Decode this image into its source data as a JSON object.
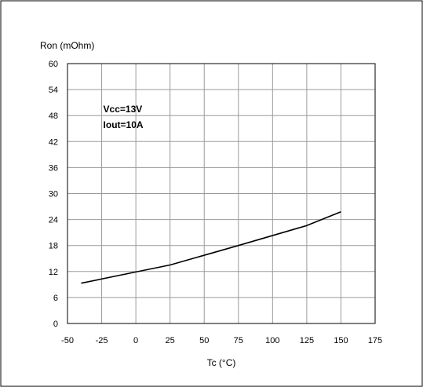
{
  "chart_data": {
    "type": "line",
    "xlabel": "Tc (°C)",
    "ylabel": "Ron (mOhm)",
    "xlim": [
      -50,
      175
    ],
    "ylim": [
      0,
      60
    ],
    "x_ticks": [
      "-50",
      "-25",
      "0",
      "25",
      "50",
      "75",
      "100",
      "125",
      "150",
      "175"
    ],
    "y_ticks": [
      "0",
      "6",
      "12",
      "18",
      "24",
      "30",
      "36",
      "42",
      "48",
      "54",
      "60"
    ],
    "grid": true,
    "annotation": [
      "Vcc=13V",
      "Iout=10A"
    ],
    "series": [
      {
        "x": [
          -40,
          0,
          25,
          75,
          125,
          150
        ],
        "y": [
          9.3,
          11.9,
          13.5,
          18.0,
          22.6,
          25.8
        ]
      }
    ]
  }
}
